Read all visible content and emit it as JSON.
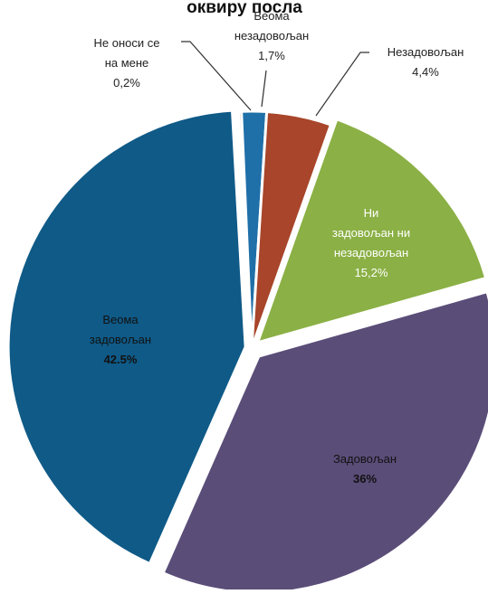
{
  "chart_data": {
    "type": "pie",
    "title": "оквиру посла",
    "slices": [
      {
        "label": "Не оноси се на мене",
        "value": 0.2,
        "display": "0,2%",
        "color": "#c0806a"
      },
      {
        "label": "Веома незадовољан",
        "value": 1.7,
        "display": "1,7%",
        "color": "#1f6fa8"
      },
      {
        "label": "Незадовољан",
        "value": 4.4,
        "display": "4,4%",
        "color": "#a8452a"
      },
      {
        "label": "Ни задовољан ни незадовољан",
        "value": 15.2,
        "display": "15,2%",
        "color": "#8bb045"
      },
      {
        "label": "Задовољан",
        "value": 36,
        "display": "36%",
        "color": "#5a4d78"
      },
      {
        "label": "Веома задовољан",
        "value": 42.5,
        "display": "42.5%",
        "color": "#0f5a87"
      }
    ]
  }
}
